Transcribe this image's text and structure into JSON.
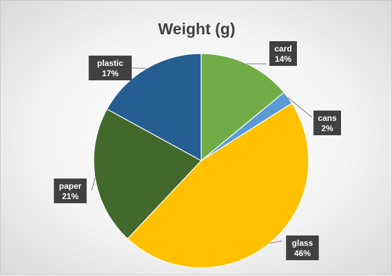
{
  "chart_data": {
    "type": "pie",
    "title": "Weight (g)",
    "slices": [
      {
        "label": "card",
        "percent": 14,
        "percent_label": "14%",
        "color": "#70ad47"
      },
      {
        "label": "cans",
        "percent": 2,
        "percent_label": "2%",
        "color": "#5b9bd5"
      },
      {
        "label": "glass",
        "percent": 46,
        "percent_label": "46%",
        "color": "#ffc000"
      },
      {
        "label": "paper",
        "percent": 21,
        "percent_label": "21%",
        "color": "#43682b"
      },
      {
        "label": "plastic",
        "percent": 17,
        "percent_label": "17%",
        "color": "#255e91"
      }
    ],
    "legend": "none",
    "data_label_style": "callout-box",
    "data_label_box_color": "#404040"
  }
}
